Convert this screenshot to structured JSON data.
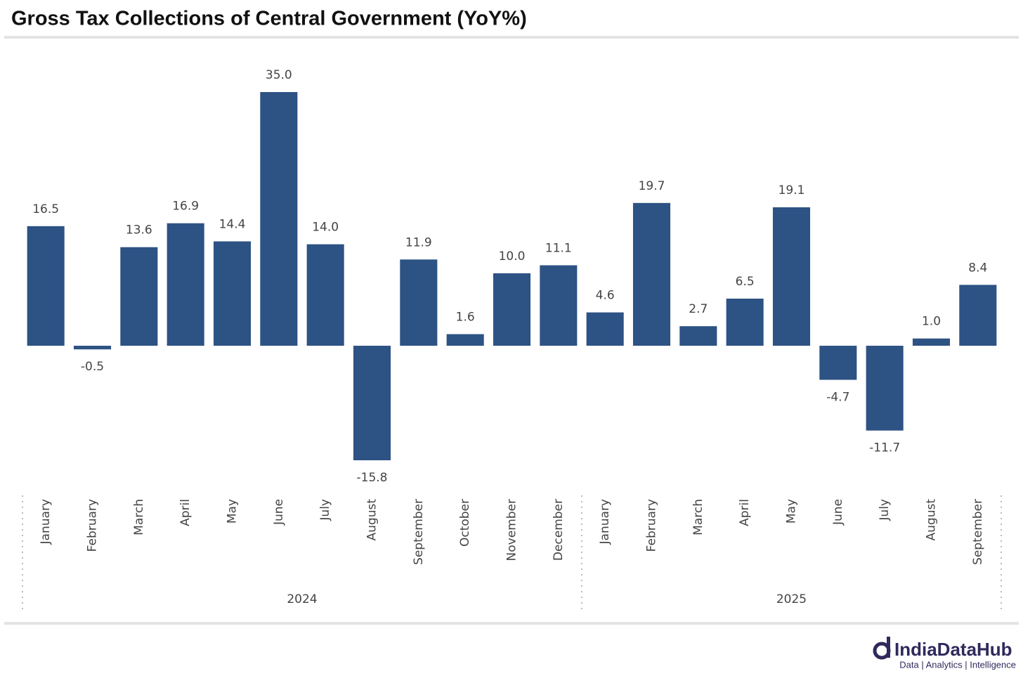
{
  "chart_data": {
    "type": "bar",
    "title": "Gross Tax Collections of Central Government (YoY%)",
    "color": "#2d5284",
    "groups": [
      {
        "name": "2024",
        "categories": [
          "January",
          "February",
          "March",
          "April",
          "May",
          "June",
          "July",
          "August",
          "September",
          "October",
          "November",
          "December"
        ],
        "values": [
          16.5,
          -0.5,
          13.6,
          16.9,
          14.4,
          35.0,
          14.0,
          -15.8,
          11.9,
          1.6,
          10.0,
          11.1
        ],
        "value_labels": [
          "16.5",
          "-0.5",
          "13.6",
          "16.9",
          "14.4",
          "35.0",
          "14.0",
          "-15.8",
          "11.9",
          "1.6",
          "10.0",
          "11.1"
        ]
      },
      {
        "name": "2025",
        "categories": [
          "January",
          "February",
          "March",
          "April",
          "May",
          "June",
          "July",
          "August",
          "September"
        ],
        "values": [
          4.6,
          19.7,
          2.7,
          6.5,
          19.1,
          -4.7,
          -11.7,
          1.0,
          8.4
        ],
        "value_labels": [
          "4.6",
          "19.7",
          "2.7",
          "6.5",
          "19.1",
          "-4.7",
          "-11.7",
          "1.0",
          "8.4"
        ]
      }
    ]
  },
  "logo": {
    "name": "IndiaDataHub",
    "tagline": "Data | Analytics | Intelligence"
  }
}
